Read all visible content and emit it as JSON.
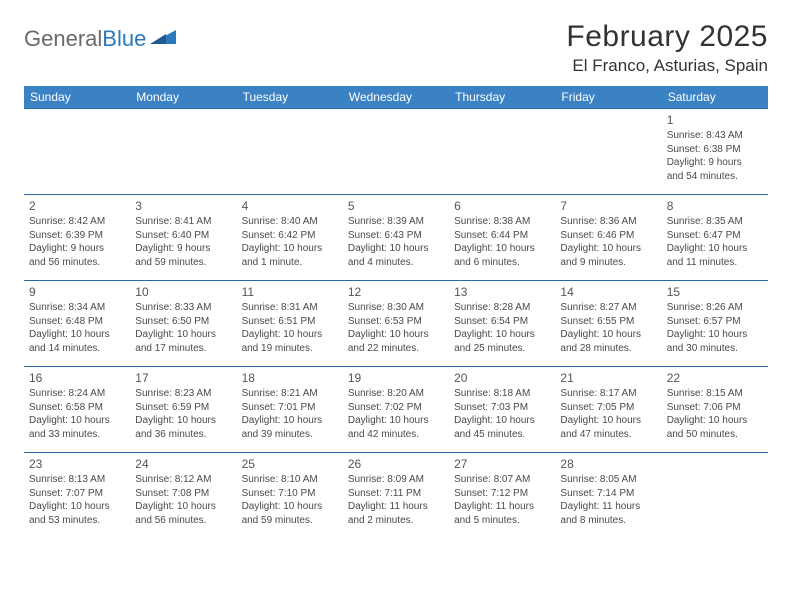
{
  "logo": {
    "text1": "General",
    "text2": "Blue"
  },
  "title": "February 2025",
  "location": "El Franco, Asturias, Spain",
  "colors": {
    "header_bg": "#3b82c4",
    "header_text": "#ffffff",
    "row_border": "#2d6aa3",
    "body_text": "#4a4a4a",
    "day_num": "#555555",
    "title_text": "#333333",
    "logo_gray": "#6a6a6a",
    "logo_blue": "#2d78bd"
  },
  "day_headers": [
    "Sunday",
    "Monday",
    "Tuesday",
    "Wednesday",
    "Thursday",
    "Friday",
    "Saturday"
  ],
  "weeks": [
    [
      null,
      null,
      null,
      null,
      null,
      null,
      {
        "n": "1",
        "sr": "Sunrise: 8:43 AM",
        "ss": "Sunset: 6:38 PM",
        "d1": "Daylight: 9 hours",
        "d2": "and 54 minutes."
      }
    ],
    [
      {
        "n": "2",
        "sr": "Sunrise: 8:42 AM",
        "ss": "Sunset: 6:39 PM",
        "d1": "Daylight: 9 hours",
        "d2": "and 56 minutes."
      },
      {
        "n": "3",
        "sr": "Sunrise: 8:41 AM",
        "ss": "Sunset: 6:40 PM",
        "d1": "Daylight: 9 hours",
        "d2": "and 59 minutes."
      },
      {
        "n": "4",
        "sr": "Sunrise: 8:40 AM",
        "ss": "Sunset: 6:42 PM",
        "d1": "Daylight: 10 hours",
        "d2": "and 1 minute."
      },
      {
        "n": "5",
        "sr": "Sunrise: 8:39 AM",
        "ss": "Sunset: 6:43 PM",
        "d1": "Daylight: 10 hours",
        "d2": "and 4 minutes."
      },
      {
        "n": "6",
        "sr": "Sunrise: 8:38 AM",
        "ss": "Sunset: 6:44 PM",
        "d1": "Daylight: 10 hours",
        "d2": "and 6 minutes."
      },
      {
        "n": "7",
        "sr": "Sunrise: 8:36 AM",
        "ss": "Sunset: 6:46 PM",
        "d1": "Daylight: 10 hours",
        "d2": "and 9 minutes."
      },
      {
        "n": "8",
        "sr": "Sunrise: 8:35 AM",
        "ss": "Sunset: 6:47 PM",
        "d1": "Daylight: 10 hours",
        "d2": "and 11 minutes."
      }
    ],
    [
      {
        "n": "9",
        "sr": "Sunrise: 8:34 AM",
        "ss": "Sunset: 6:48 PM",
        "d1": "Daylight: 10 hours",
        "d2": "and 14 minutes."
      },
      {
        "n": "10",
        "sr": "Sunrise: 8:33 AM",
        "ss": "Sunset: 6:50 PM",
        "d1": "Daylight: 10 hours",
        "d2": "and 17 minutes."
      },
      {
        "n": "11",
        "sr": "Sunrise: 8:31 AM",
        "ss": "Sunset: 6:51 PM",
        "d1": "Daylight: 10 hours",
        "d2": "and 19 minutes."
      },
      {
        "n": "12",
        "sr": "Sunrise: 8:30 AM",
        "ss": "Sunset: 6:53 PM",
        "d1": "Daylight: 10 hours",
        "d2": "and 22 minutes."
      },
      {
        "n": "13",
        "sr": "Sunrise: 8:28 AM",
        "ss": "Sunset: 6:54 PM",
        "d1": "Daylight: 10 hours",
        "d2": "and 25 minutes."
      },
      {
        "n": "14",
        "sr": "Sunrise: 8:27 AM",
        "ss": "Sunset: 6:55 PM",
        "d1": "Daylight: 10 hours",
        "d2": "and 28 minutes."
      },
      {
        "n": "15",
        "sr": "Sunrise: 8:26 AM",
        "ss": "Sunset: 6:57 PM",
        "d1": "Daylight: 10 hours",
        "d2": "and 30 minutes."
      }
    ],
    [
      {
        "n": "16",
        "sr": "Sunrise: 8:24 AM",
        "ss": "Sunset: 6:58 PM",
        "d1": "Daylight: 10 hours",
        "d2": "and 33 minutes."
      },
      {
        "n": "17",
        "sr": "Sunrise: 8:23 AM",
        "ss": "Sunset: 6:59 PM",
        "d1": "Daylight: 10 hours",
        "d2": "and 36 minutes."
      },
      {
        "n": "18",
        "sr": "Sunrise: 8:21 AM",
        "ss": "Sunset: 7:01 PM",
        "d1": "Daylight: 10 hours",
        "d2": "and 39 minutes."
      },
      {
        "n": "19",
        "sr": "Sunrise: 8:20 AM",
        "ss": "Sunset: 7:02 PM",
        "d1": "Daylight: 10 hours",
        "d2": "and 42 minutes."
      },
      {
        "n": "20",
        "sr": "Sunrise: 8:18 AM",
        "ss": "Sunset: 7:03 PM",
        "d1": "Daylight: 10 hours",
        "d2": "and 45 minutes."
      },
      {
        "n": "21",
        "sr": "Sunrise: 8:17 AM",
        "ss": "Sunset: 7:05 PM",
        "d1": "Daylight: 10 hours",
        "d2": "and 47 minutes."
      },
      {
        "n": "22",
        "sr": "Sunrise: 8:15 AM",
        "ss": "Sunset: 7:06 PM",
        "d1": "Daylight: 10 hours",
        "d2": "and 50 minutes."
      }
    ],
    [
      {
        "n": "23",
        "sr": "Sunrise: 8:13 AM",
        "ss": "Sunset: 7:07 PM",
        "d1": "Daylight: 10 hours",
        "d2": "and 53 minutes."
      },
      {
        "n": "24",
        "sr": "Sunrise: 8:12 AM",
        "ss": "Sunset: 7:08 PM",
        "d1": "Daylight: 10 hours",
        "d2": "and 56 minutes."
      },
      {
        "n": "25",
        "sr": "Sunrise: 8:10 AM",
        "ss": "Sunset: 7:10 PM",
        "d1": "Daylight: 10 hours",
        "d2": "and 59 minutes."
      },
      {
        "n": "26",
        "sr": "Sunrise: 8:09 AM",
        "ss": "Sunset: 7:11 PM",
        "d1": "Daylight: 11 hours",
        "d2": "and 2 minutes."
      },
      {
        "n": "27",
        "sr": "Sunrise: 8:07 AM",
        "ss": "Sunset: 7:12 PM",
        "d1": "Daylight: 11 hours",
        "d2": "and 5 minutes."
      },
      {
        "n": "28",
        "sr": "Sunrise: 8:05 AM",
        "ss": "Sunset: 7:14 PM",
        "d1": "Daylight: 11 hours",
        "d2": "and 8 minutes."
      },
      null
    ]
  ]
}
